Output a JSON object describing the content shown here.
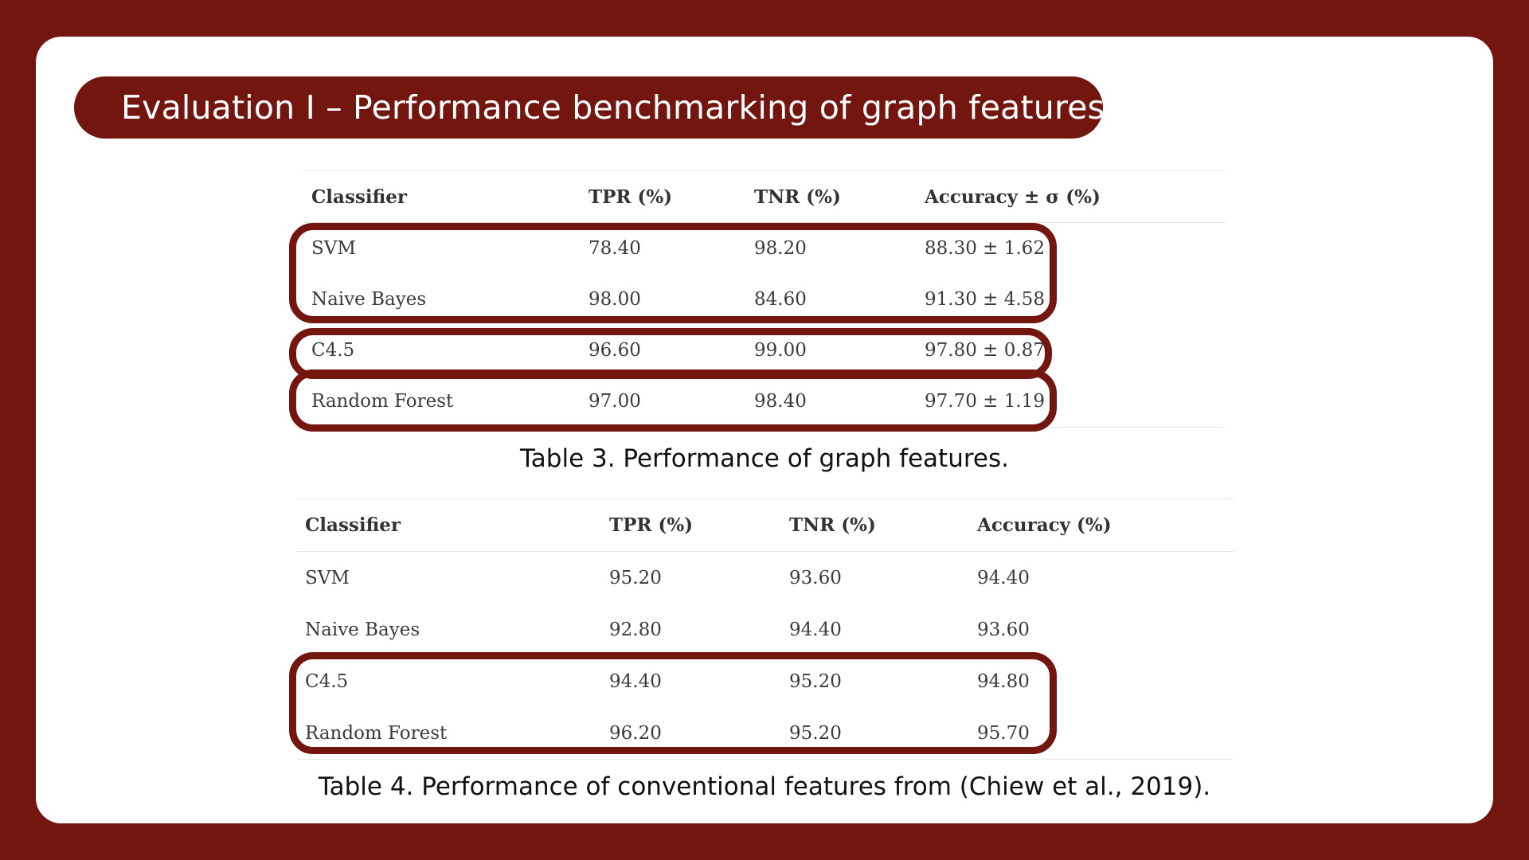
{
  "title": "Evaluation I – Performance benchmarking of graph features",
  "table3": {
    "headers": [
      "Classifier",
      "TPR (%)",
      "TNR (%)",
      "Accuracy ± σ (%)"
    ],
    "rows": [
      [
        "SVM",
        "78.40",
        "98.20",
        "88.30 ± 1.62"
      ],
      [
        "Naive Bayes",
        "98.00",
        "84.60",
        "91.30 ± 4.58"
      ],
      [
        "C4.5",
        "96.60",
        "99.00",
        "97.80 ± 0.87"
      ],
      [
        "Random Forest",
        "97.00",
        "98.40",
        "97.70 ± 1.19"
      ]
    ],
    "caption": "Table 3. Performance of graph features."
  },
  "table4": {
    "headers": [
      "Classifier",
      "TPR (%)",
      "TNR (%)",
      "Accuracy (%)"
    ],
    "rows": [
      [
        "SVM",
        "95.20",
        "93.60",
        "94.40"
      ],
      [
        "Naive Bayes",
        "92.80",
        "94.40",
        "93.60"
      ],
      [
        "C4.5",
        "94.40",
        "95.20",
        "94.80"
      ],
      [
        "Random Forest",
        "96.20",
        "95.20",
        "95.70"
      ]
    ],
    "caption": "Table 4. Performance of conventional features from (Chiew et al., 2019)."
  },
  "colors": {
    "background": "#731610",
    "slide": "#ffffff",
    "highlight": "#731610"
  }
}
